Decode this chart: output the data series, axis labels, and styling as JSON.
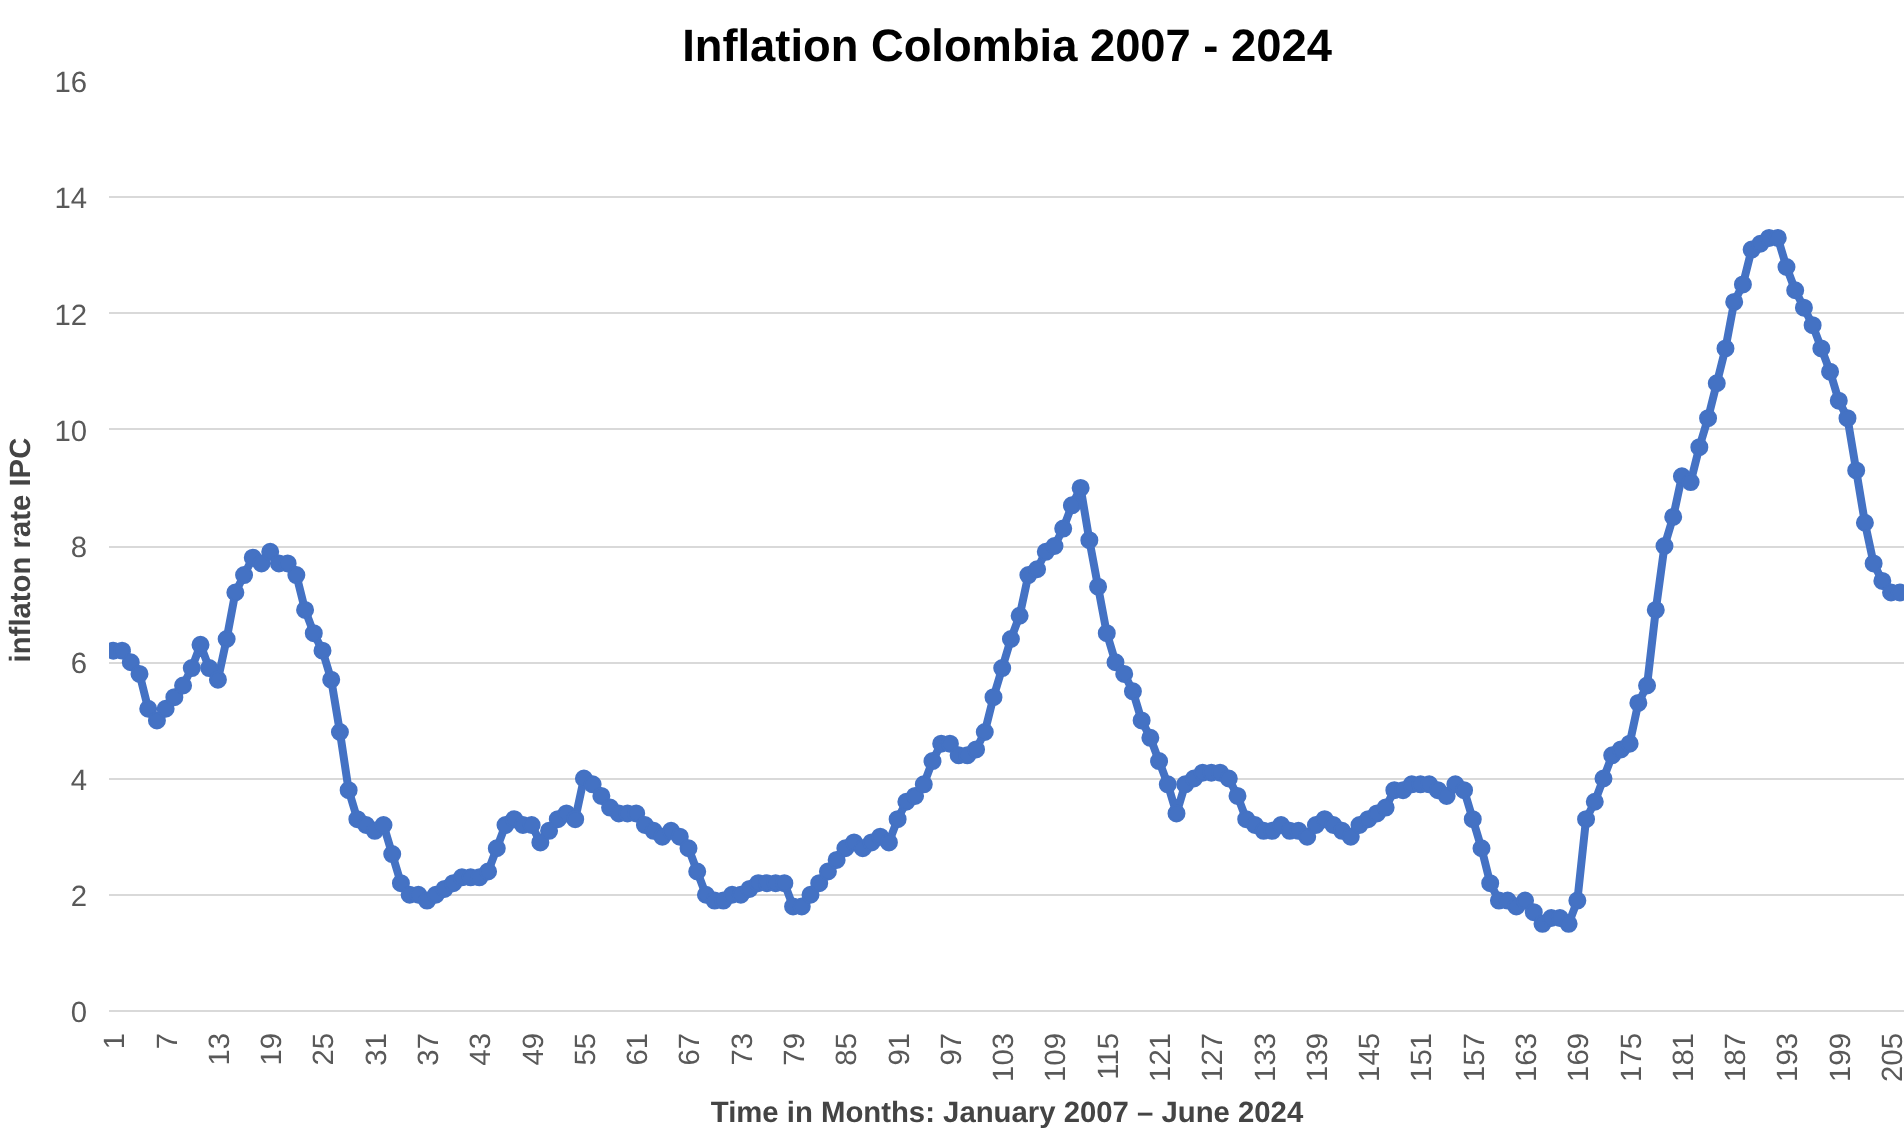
{
  "chart_data": {
    "type": "line",
    "title": "Inflation Colombia 2007 - 2024",
    "xlabel": "Time in Months: January 2007 – June 2024",
    "ylabel": "inflaton rate  IPC",
    "x": [
      1,
      2,
      3,
      4,
      5,
      6,
      7,
      8,
      9,
      10,
      11,
      12,
      13,
      14,
      15,
      16,
      17,
      18,
      19,
      20,
      21,
      22,
      23,
      24,
      25,
      26,
      27,
      28,
      29,
      30,
      31,
      32,
      33,
      34,
      35,
      36,
      37,
      38,
      39,
      40,
      41,
      42,
      43,
      44,
      45,
      46,
      47,
      48,
      49,
      50,
      51,
      52,
      53,
      54,
      55,
      56,
      57,
      58,
      59,
      60,
      61,
      62,
      63,
      64,
      65,
      66,
      67,
      68,
      69,
      70,
      71,
      72,
      73,
      74,
      75,
      76,
      77,
      78,
      79,
      80,
      81,
      82,
      83,
      84,
      85,
      86,
      87,
      88,
      89,
      90,
      91,
      92,
      93,
      94,
      95,
      96,
      97,
      98,
      99,
      100,
      101,
      102,
      103,
      104,
      105,
      106,
      107,
      108,
      109,
      110,
      111,
      112,
      113,
      114,
      115,
      116,
      117,
      118,
      119,
      120,
      121,
      122,
      123,
      124,
      125,
      126,
      127,
      128,
      129,
      130,
      131,
      132,
      133,
      134,
      135,
      136,
      137,
      138,
      139,
      140,
      141,
      142,
      143,
      144,
      145,
      146,
      147,
      148,
      149,
      150,
      151,
      152,
      153,
      154,
      155,
      156,
      157,
      158,
      159,
      160,
      161,
      162,
      163,
      164,
      165,
      166,
      167,
      168,
      169,
      170,
      171,
      172,
      173,
      174,
      175,
      176,
      177,
      178,
      179,
      180,
      181,
      182,
      183,
      184,
      185,
      186,
      187,
      188,
      189,
      190,
      191,
      192,
      193,
      194,
      195,
      196,
      197,
      198,
      199,
      200,
      201,
      202,
      203,
      204,
      205,
      206
    ],
    "series": [
      {
        "color": "#4472c4",
        "values": [
          6.2,
          6.2,
          6.0,
          5.8,
          5.2,
          5.0,
          5.2,
          5.4,
          5.6,
          5.9,
          6.3,
          5.9,
          5.7,
          6.4,
          7.2,
          7.5,
          7.8,
          7.7,
          7.9,
          7.7,
          7.7,
          7.5,
          6.9,
          6.5,
          6.2,
          5.7,
          4.8,
          3.8,
          3.3,
          3.2,
          3.1,
          3.2,
          2.7,
          2.2,
          2.0,
          2.0,
          1.9,
          2.0,
          2.1,
          2.2,
          2.3,
          2.3,
          2.3,
          2.4,
          2.8,
          3.2,
          3.3,
          3.2,
          3.2,
          2.9,
          3.1,
          3.3,
          3.4,
          3.3,
          4.0,
          3.9,
          3.7,
          3.5,
          3.4,
          3.4,
          3.4,
          3.2,
          3.1,
          3.0,
          3.1,
          3.0,
          2.8,
          2.4,
          2.0,
          1.9,
          1.9,
          2.0,
          2.0,
          2.1,
          2.2,
          2.2,
          2.2,
          2.2,
          1.8,
          1.8,
          2.0,
          2.2,
          2.4,
          2.6,
          2.8,
          2.9,
          2.8,
          2.9,
          3.0,
          2.9,
          3.3,
          3.6,
          3.7,
          3.9,
          4.3,
          4.6,
          4.6,
          4.4,
          4.4,
          4.5,
          4.8,
          5.4,
          5.9,
          6.4,
          6.8,
          7.5,
          7.6,
          7.9,
          8.0,
          8.3,
          8.7,
          9.0,
          8.1,
          7.3,
          6.5,
          6.0,
          5.8,
          5.5,
          5.0,
          4.7,
          4.3,
          3.9,
          3.4,
          3.9,
          4.0,
          4.1,
          4.1,
          4.1,
          4.0,
          3.7,
          3.3,
          3.2,
          3.1,
          3.1,
          3.2,
          3.1,
          3.1,
          3.0,
          3.2,
          3.3,
          3.2,
          3.1,
          3.0,
          3.2,
          3.3,
          3.4,
          3.5,
          3.8,
          3.8,
          3.9,
          3.9,
          3.9,
          3.8,
          3.7,
          3.9,
          3.8,
          3.3,
          2.8,
          2.2,
          1.9,
          1.9,
          1.8,
          1.9,
          1.7,
          1.5,
          1.6,
          1.6,
          1.5,
          1.9,
          3.3,
          3.6,
          4.0,
          4.4,
          4.5,
          4.6,
          5.3,
          5.6,
          6.9,
          8.0,
          8.5,
          9.2,
          9.1,
          9.7,
          10.2,
          10.8,
          11.4,
          12.2,
          12.5,
          13.1,
          13.2,
          13.3,
          13.3,
          12.8,
          12.4,
          12.1,
          11.8,
          11.4,
          11.0,
          10.5,
          10.2,
          9.3,
          8.4,
          7.7,
          7.4,
          7.2,
          7.2
        ]
      }
    ],
    "xlim": [
      0.5,
      206.6
    ],
    "xticks": [
      1,
      7,
      13,
      19,
      25,
      31,
      37,
      43,
      49,
      55,
      61,
      67,
      73,
      79,
      85,
      91,
      97,
      103,
      109,
      115,
      121,
      127,
      133,
      139,
      145,
      151,
      157,
      163,
      169,
      175,
      181,
      187,
      193,
      199,
      205
    ],
    "ylim": [
      0,
      16
    ],
    "yticks": [
      0,
      2,
      4,
      6,
      8,
      10,
      12,
      14,
      16
    ],
    "grid": "y",
    "marker": "circle",
    "line_style": "solid"
  }
}
